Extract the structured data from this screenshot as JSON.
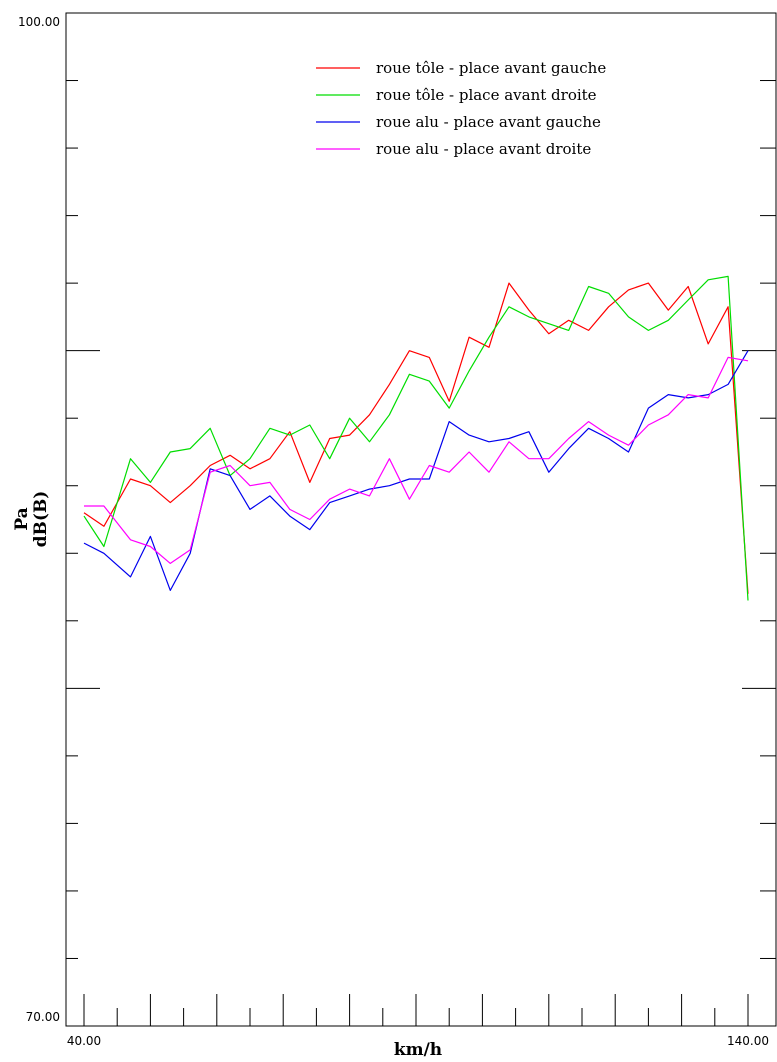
{
  "chart_data": {
    "type": "line",
    "xlabel": "km/h",
    "ylabel_lines": [
      "Pa",
      "dB(B)"
    ],
    "xlim": [
      40,
      140
    ],
    "ylim": [
      70,
      100
    ],
    "x_tick_labels": [
      "40.00",
      "140.00"
    ],
    "y_tick_labels": [
      "70.00",
      "100.00"
    ],
    "x": [
      40,
      43,
      47,
      50,
      53,
      56,
      59,
      62,
      65,
      68,
      71,
      74,
      77,
      80,
      83,
      86,
      89,
      92,
      95,
      98,
      101,
      104,
      107,
      110,
      113,
      116,
      119,
      122,
      125,
      128,
      131,
      134,
      137,
      140
    ],
    "legend_position": "top-right",
    "series": [
      {
        "name": "roue tôle - place avant gauche",
        "color": "#ff0000",
        "values": [
          85.2,
          84.8,
          86.2,
          86.0,
          85.5,
          86.0,
          86.6,
          86.9,
          86.5,
          86.8,
          87.6,
          86.1,
          87.4,
          87.5,
          88.1,
          89.0,
          90.0,
          89.8,
          88.5,
          90.4,
          90.1,
          92.0,
          91.2,
          90.5,
          90.9,
          90.6,
          91.3,
          91.8,
          92.0,
          91.2,
          91.9,
          90.2,
          91.3,
          82.8
        ]
      },
      {
        "name": "roue tôle - place avant droite",
        "color": "#00dd00",
        "values": [
          85.1,
          84.2,
          86.8,
          86.1,
          87.0,
          87.1,
          87.7,
          86.3,
          86.8,
          87.7,
          87.5,
          87.8,
          86.8,
          88.0,
          87.3,
          88.1,
          89.3,
          89.1,
          88.3,
          89.4,
          90.4,
          91.3,
          91.0,
          90.8,
          90.6,
          91.9,
          91.7,
          91.0,
          90.6,
          90.9,
          91.5,
          92.1,
          92.2,
          82.6
        ]
      },
      {
        "name": "roue alu - place avant gauche",
        "color": "#0000ee",
        "values": [
          84.3,
          84.0,
          83.3,
          84.5,
          82.9,
          84.0,
          86.5,
          86.3,
          85.3,
          85.7,
          85.1,
          84.7,
          85.5,
          85.7,
          85.9,
          86.0,
          86.2,
          86.2,
          87.9,
          87.5,
          87.3,
          87.4,
          87.6,
          86.4,
          87.1,
          87.7,
          87.4,
          87.0,
          88.3,
          88.7,
          88.6,
          88.7,
          89.0,
          90.0
        ]
      },
      {
        "name": "roue alu - place avant droite",
        "color": "#ff00ff",
        "values": [
          85.4,
          85.4,
          84.4,
          84.2,
          83.7,
          84.1,
          86.4,
          86.6,
          86.0,
          86.1,
          85.3,
          85.0,
          85.6,
          85.9,
          85.7,
          86.8,
          85.6,
          86.6,
          86.4,
          87.0,
          86.4,
          87.3,
          86.8,
          86.8,
          87.4,
          87.9,
          87.5,
          87.2,
          87.8,
          88.1,
          88.7,
          88.6,
          89.8,
          89.7
        ]
      }
    ]
  }
}
